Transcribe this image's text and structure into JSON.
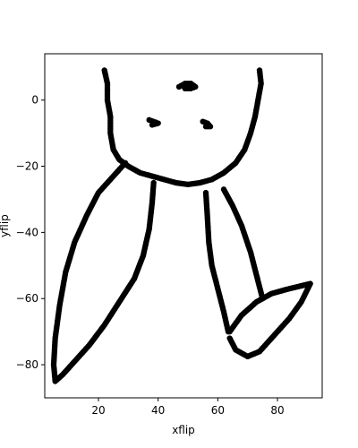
{
  "chart_data": {
    "type": "scatter",
    "title": "",
    "xlabel": "xflip",
    "ylabel": "yflip",
    "xlim": [
      2,
      95
    ],
    "ylim": [
      -90,
      14
    ],
    "xticks": [
      20,
      40,
      60,
      80
    ],
    "yticks": [
      0,
      -20,
      -40,
      -60,
      -80
    ],
    "grid": false,
    "marker_color": "#000000",
    "series": [
      {
        "name": "",
        "strokes": [
          [
            [
              22,
              9
            ],
            [
              23,
              5
            ],
            [
              23,
              0
            ],
            [
              24,
              -5
            ],
            [
              24,
              -10
            ],
            [
              25,
              -15
            ],
            [
              27,
              -18
            ],
            [
              30,
              -20
            ],
            [
              34,
              -22
            ],
            [
              38,
              -23
            ],
            [
              42,
              -24
            ],
            [
              46,
              -25
            ],
            [
              50,
              -25.5
            ],
            [
              54,
              -25
            ],
            [
              58,
              -24
            ],
            [
              62,
              -22
            ],
            [
              66,
              -19
            ],
            [
              69,
              -15
            ],
            [
              71,
              -10
            ],
            [
              72.5,
              -5
            ],
            [
              73.5,
              0
            ],
            [
              74.5,
              5
            ],
            [
              74,
              9
            ]
          ],
          [
            [
              47,
              4
            ],
            [
              49,
              5
            ],
            [
              51,
              5
            ],
            [
              52.5,
              4
            ],
            [
              51,
              3.5
            ],
            [
              49,
              3.5
            ]
          ],
          [
            [
              37,
              -6
            ],
            [
              38.5,
              -6.5
            ],
            [
              40,
              -7
            ],
            [
              38,
              -7.5
            ]
          ],
          [
            [
              55,
              -6.5
            ],
            [
              56.5,
              -7
            ],
            [
              57.5,
              -8
            ],
            [
              56,
              -8
            ]
          ],
          [
            [
              29,
              -19
            ],
            [
              25,
              -23
            ],
            [
              20,
              -28
            ],
            [
              16,
              -35
            ],
            [
              12,
              -43
            ],
            [
              9,
              -52
            ],
            [
              7,
              -62
            ],
            [
              5.5,
              -72
            ],
            [
              5,
              -80
            ],
            [
              5.5,
              -85
            ],
            [
              8,
              -83
            ],
            [
              12,
              -79
            ],
            [
              17,
              -74
            ],
            [
              22,
              -68
            ],
            [
              27,
              -61
            ],
            [
              32,
              -54
            ],
            [
              35,
              -47
            ],
            [
              37,
              -39
            ],
            [
              38,
              -31
            ],
            [
              38.5,
              -25
            ]
          ],
          [
            [
              56,
              -28
            ],
            [
              56.5,
              -35
            ],
            [
              57,
              -43
            ],
            [
              58,
              -50
            ],
            [
              60,
              -57
            ],
            [
              62,
              -64
            ],
            [
              63.5,
              -70
            ]
          ],
          [
            [
              62,
              -27
            ],
            [
              65,
              -32
            ],
            [
              68,
              -38
            ],
            [
              71,
              -46
            ],
            [
              73,
              -53
            ],
            [
              75,
              -60
            ]
          ],
          [
            [
              64,
              -70
            ],
            [
              68,
              -65
            ],
            [
              73,
              -61
            ],
            [
              78,
              -58.5
            ],
            [
              84,
              -57
            ],
            [
              91,
              -55.5
            ],
            [
              88,
              -61
            ],
            [
              84,
              -66
            ],
            [
              79,
              -71
            ],
            [
              74,
              -76
            ],
            [
              70,
              -77.5
            ],
            [
              66,
              -75.5
            ],
            [
              64,
              -72
            ]
          ]
        ]
      }
    ]
  }
}
